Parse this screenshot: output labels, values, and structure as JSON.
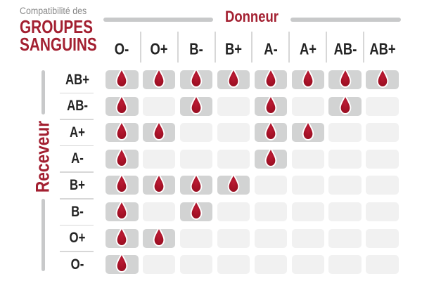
{
  "title": {
    "eyebrow": "Compatibilité des",
    "line1": "GROUPES",
    "line2": "SANGUINS"
  },
  "chart_data": {
    "type": "heatmap",
    "title": "Compatibilité des GROUPES SANGUINS",
    "columns_label": "Donneur",
    "rows_label": "Receveur",
    "columns": [
      "O-",
      "O+",
      "B-",
      "B+",
      "A-",
      "A+",
      "AB-",
      "AB+"
    ],
    "rows": [
      "AB+",
      "AB-",
      "A+",
      "A-",
      "B+",
      "B-",
      "O+",
      "O-"
    ],
    "matrix": [
      [
        1,
        1,
        1,
        1,
        1,
        1,
        1,
        1
      ],
      [
        1,
        0,
        1,
        0,
        1,
        0,
        1,
        0
      ],
      [
        1,
        1,
        0,
        0,
        1,
        1,
        0,
        0
      ],
      [
        1,
        0,
        0,
        0,
        1,
        0,
        0,
        0
      ],
      [
        1,
        1,
        1,
        1,
        0,
        0,
        0,
        0
      ],
      [
        1,
        0,
        1,
        0,
        0,
        0,
        0,
        0
      ],
      [
        1,
        1,
        0,
        0,
        0,
        0,
        0,
        0
      ],
      [
        1,
        0,
        0,
        0,
        0,
        0,
        0,
        0
      ]
    ],
    "marker": "blood-drop-icon",
    "legend_position": "none",
    "grid": "cells-with-gaps"
  },
  "colors": {
    "accent_red": "#a32031",
    "drop_center": "#bb1b34",
    "drop_edge": "#8c0d1f",
    "drop_outline": "#ffffff",
    "cell_filled": "#d2d3d3",
    "cell_empty": "#f1f1f1",
    "axis_rule_gray": "#c8c9ca",
    "separator_gray": "#d7d7d7",
    "heading_text": "#232323",
    "eyebrow_gray": "#898989",
    "background": "#ffffff"
  }
}
